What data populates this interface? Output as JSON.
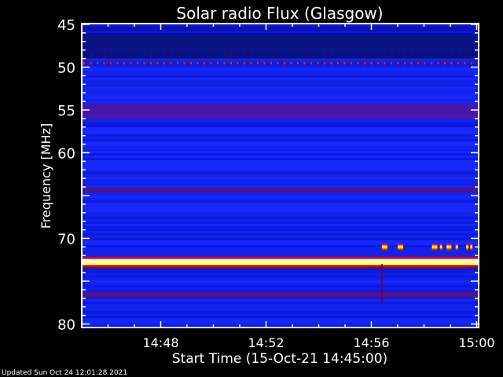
{
  "chart_data": {
    "type": "heatmap",
    "title": "Solar radio Flux (Glasgow)",
    "xlabel": "Start Time (15-Oct-21 14:45:00)",
    "ylabel": "Frequency [MHz]",
    "x_ticks": [
      "14:48",
      "14:52",
      "14:56",
      "15:00"
    ],
    "x_tick_minutes_after_start": [
      3,
      7,
      11,
      15
    ],
    "xlim_minutes_after_start": [
      0,
      15.1
    ],
    "y_ticks": [
      45,
      50,
      55,
      60,
      70,
      80
    ],
    "ylim": [
      45,
      80
    ],
    "y_inverted": true,
    "colormap": [
      "#000040",
      "#0000ff",
      "#800060",
      "#ff0000",
      "#ffff00",
      "#ffffff"
    ],
    "background_level_color": "#1020f0",
    "bands": [
      {
        "freq": [
          45.2,
          45.8
        ],
        "level": "dark-blue"
      },
      {
        "freq": [
          46,
          49
        ],
        "level": "dark-navy"
      },
      {
        "freq": [
          49.4,
          49.7
        ],
        "level": "red-dotted"
      },
      {
        "freq": [
          54.2,
          56
        ],
        "level": "purple"
      },
      {
        "freq": [
          64,
          64.6
        ],
        "level": "dark-purple"
      },
      {
        "freq": [
          72.3,
          73.2
        ],
        "level": "saturated-white-yellow"
      },
      {
        "freq": [
          76.2,
          76.8
        ],
        "level": "dark-purple"
      }
    ],
    "bursts_freq": 71,
    "bursts_minutes_after_start": [
      11.4,
      12.0,
      13.3,
      13.6,
      13.85,
      13.95,
      14.2,
      14.6,
      14.75
    ]
  },
  "footer": {
    "updated": "Updated Sun Oct 24 12:01:28 2021"
  }
}
